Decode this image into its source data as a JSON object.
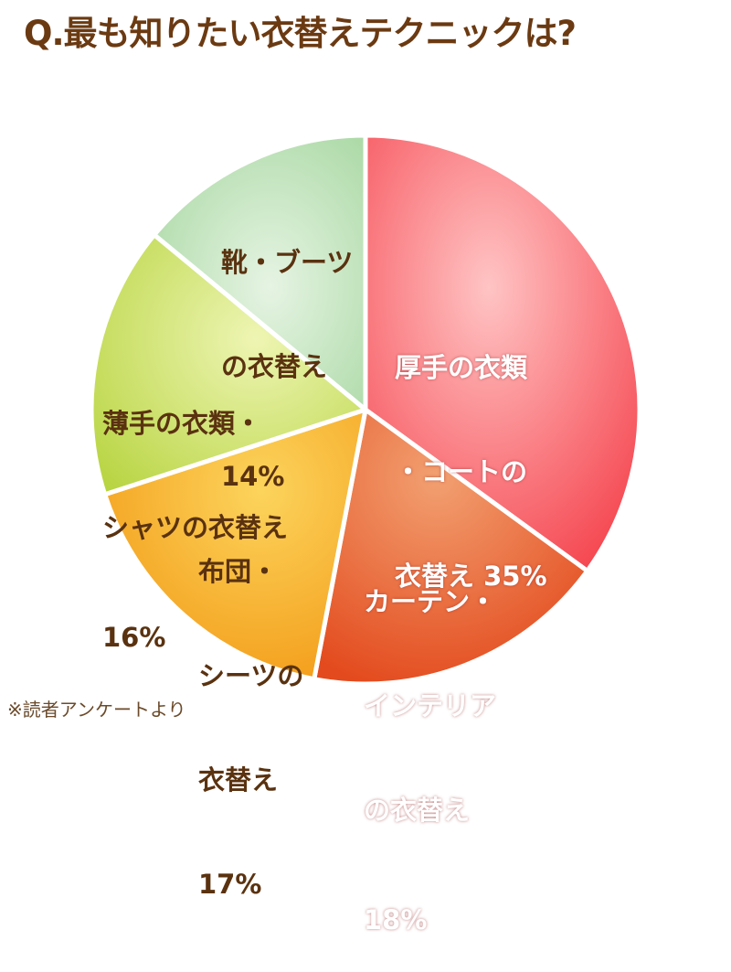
{
  "header": {
    "title": "Q.最も知りたい衣替えテクニックは?"
  },
  "footer": {
    "note": "※読者アンケートより"
  },
  "labels": {
    "s0": {
      "line1": "厚手の衣類",
      "line2": "・コートの",
      "line3": "衣替え 35%"
    },
    "s1": {
      "line1": "カーテン・",
      "line2": "インテリア",
      "line3": "の衣替え",
      "line4": "18%"
    },
    "s2": {
      "line1": "布団・",
      "line2": "シーツの",
      "line3": "衣替え",
      "line4": "17%"
    },
    "s3": {
      "line1": "薄手の衣類・",
      "line2": "シャツの衣替え",
      "line3": "16%"
    },
    "s4": {
      "line1": "靴・ブーツ",
      "line2": "の衣替え",
      "line3": "14%"
    }
  },
  "colors": {
    "title": "#6b3a12",
    "slice_coat": "#f7636a",
    "slice_curtain": "#ec6a32",
    "slice_futon": "#f6b02a",
    "slice_shirts": "#c9de6a",
    "slice_boots": "#b5dfb5"
  },
  "chart_data": {
    "type": "pie",
    "title": "Q.最も知りたい衣替えテクニックは?",
    "categories": [
      "厚手の衣類・コートの衣替え",
      "カーテン・インテリアの衣替え",
      "布団・シーツの衣替え",
      "薄手の衣類・シャツの衣替え",
      "靴・ブーツの衣替え"
    ],
    "values": [
      35,
      18,
      17,
      16,
      14
    ],
    "unit": "%",
    "start_angle": "12 o'clock",
    "direction": "clockwise",
    "legend": "none (labels inside slices)",
    "annotation": "※読者アンケートより"
  }
}
